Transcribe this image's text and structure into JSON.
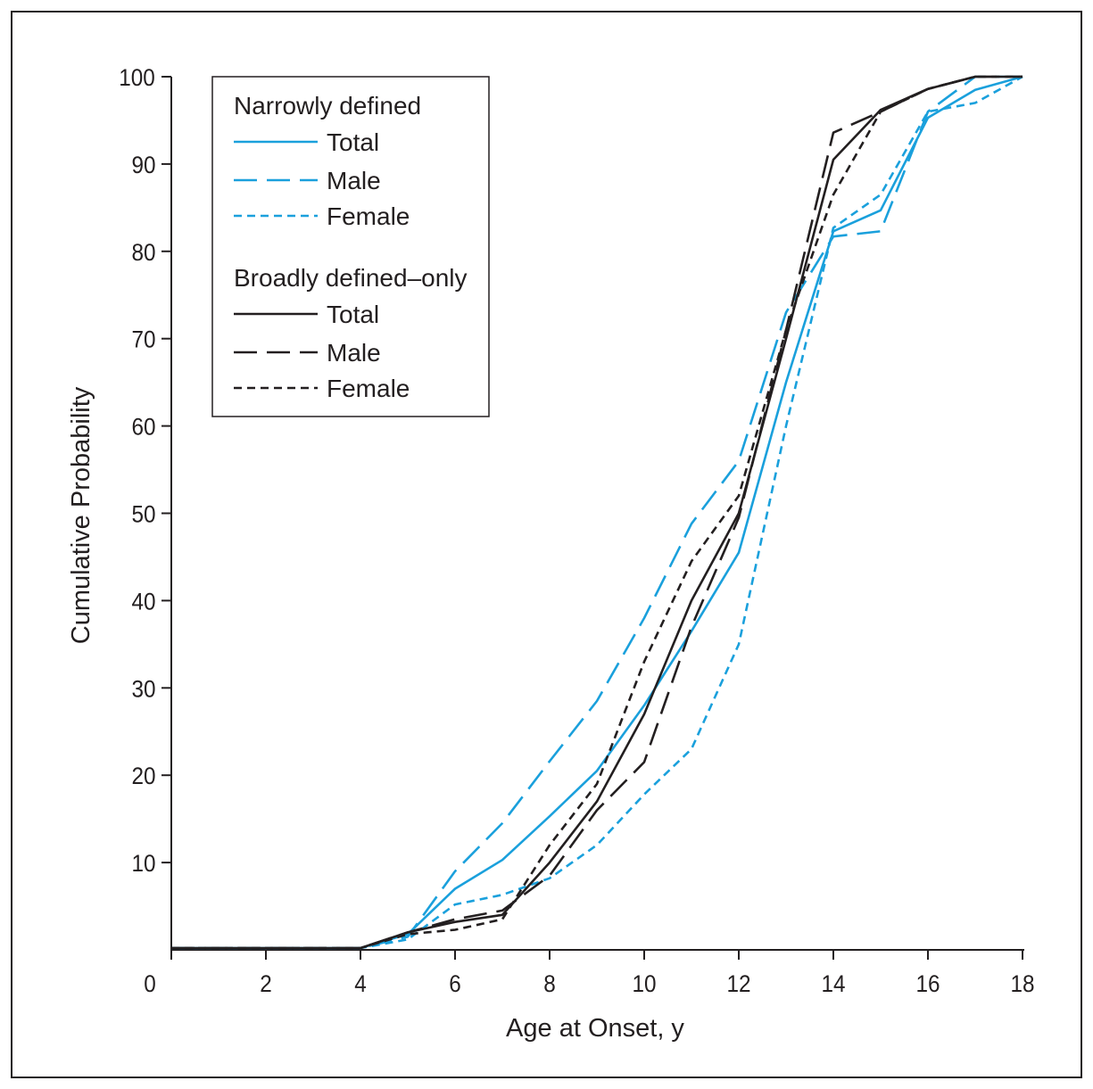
{
  "chart_data": {
    "type": "line",
    "xlabel": "Age at Onset, y",
    "ylabel": "Cumulative Probability",
    "xlim": [
      0,
      18
    ],
    "ylim": [
      0,
      100
    ],
    "xticks": [
      0,
      2,
      4,
      6,
      8,
      10,
      12,
      14,
      16,
      18
    ],
    "yticks": [
      10,
      20,
      30,
      40,
      50,
      60,
      70,
      80,
      90,
      100
    ],
    "x": [
      0,
      1,
      2,
      3,
      4,
      5,
      6,
      7,
      8,
      9,
      10,
      11,
      12,
      13,
      14,
      15,
      16,
      17,
      18
    ],
    "legend": {
      "position": "top-left",
      "groups": [
        {
          "title": "Narrowly defined",
          "entries": [
            "Total",
            "Male",
            "Female"
          ]
        },
        {
          "title": "Broadly defined–only",
          "entries": [
            "Total",
            "Male",
            "Female"
          ]
        }
      ]
    },
    "colors": {
      "narrow": "#1aa0dc",
      "broad": "#231f20"
    },
    "series": [
      {
        "group": "Narrowly defined",
        "name": "Total",
        "color": "#1aa0dc",
        "dash": "solid",
        "values": [
          0.2,
          0.2,
          0.2,
          0.2,
          0.2,
          1.8,
          7.0,
          10.3,
          15.3,
          20.5,
          28.0,
          36.5,
          45.5,
          65.0,
          82.3,
          84.7,
          95.3,
          98.5,
          100
        ]
      },
      {
        "group": "Narrowly defined",
        "name": "Male",
        "color": "#1aa0dc",
        "dash": "long",
        "values": [
          0.2,
          0.2,
          0.2,
          0.2,
          0.2,
          1.5,
          9.0,
          14.5,
          21.6,
          28.5,
          38.0,
          48.8,
          56.0,
          73.0,
          81.7,
          82.3,
          96.0,
          100,
          100
        ]
      },
      {
        "group": "Narrowly defined",
        "name": "Female",
        "color": "#1aa0dc",
        "dash": "short",
        "values": [
          0.2,
          0.2,
          0.2,
          0.2,
          0.2,
          1.2,
          5.2,
          6.3,
          8.2,
          12.0,
          17.8,
          23.0,
          35.0,
          60.0,
          82.7,
          86.5,
          96.0,
          97.0,
          100
        ]
      },
      {
        "group": "Broadly defined–only",
        "name": "Total",
        "color": "#231f20",
        "dash": "solid",
        "values": [
          0.2,
          0.2,
          0.2,
          0.2,
          0.2,
          2.0,
          3.2,
          4.0,
          10.0,
          17.0,
          27.0,
          40.0,
          50.0,
          70.0,
          90.5,
          96.2,
          98.6,
          100,
          100
        ]
      },
      {
        "group": "Broadly defined–only",
        "name": "Male",
        "color": "#231f20",
        "dash": "long",
        "values": [
          0.2,
          0.2,
          0.2,
          0.2,
          0.2,
          2.0,
          3.5,
          4.5,
          8.5,
          16.0,
          21.5,
          37.0,
          49.5,
          71.0,
          93.6,
          96.0,
          98.6,
          100,
          100
        ]
      },
      {
        "group": "Broadly defined–only",
        "name": "Female",
        "color": "#231f20",
        "dash": "short",
        "values": [
          0.2,
          0.2,
          0.2,
          0.2,
          0.2,
          1.8,
          2.3,
          3.5,
          12.0,
          19.0,
          33.0,
          44.5,
          52.0,
          71.0,
          86.5,
          96.0,
          98.6,
          100,
          100
        ]
      }
    ]
  }
}
